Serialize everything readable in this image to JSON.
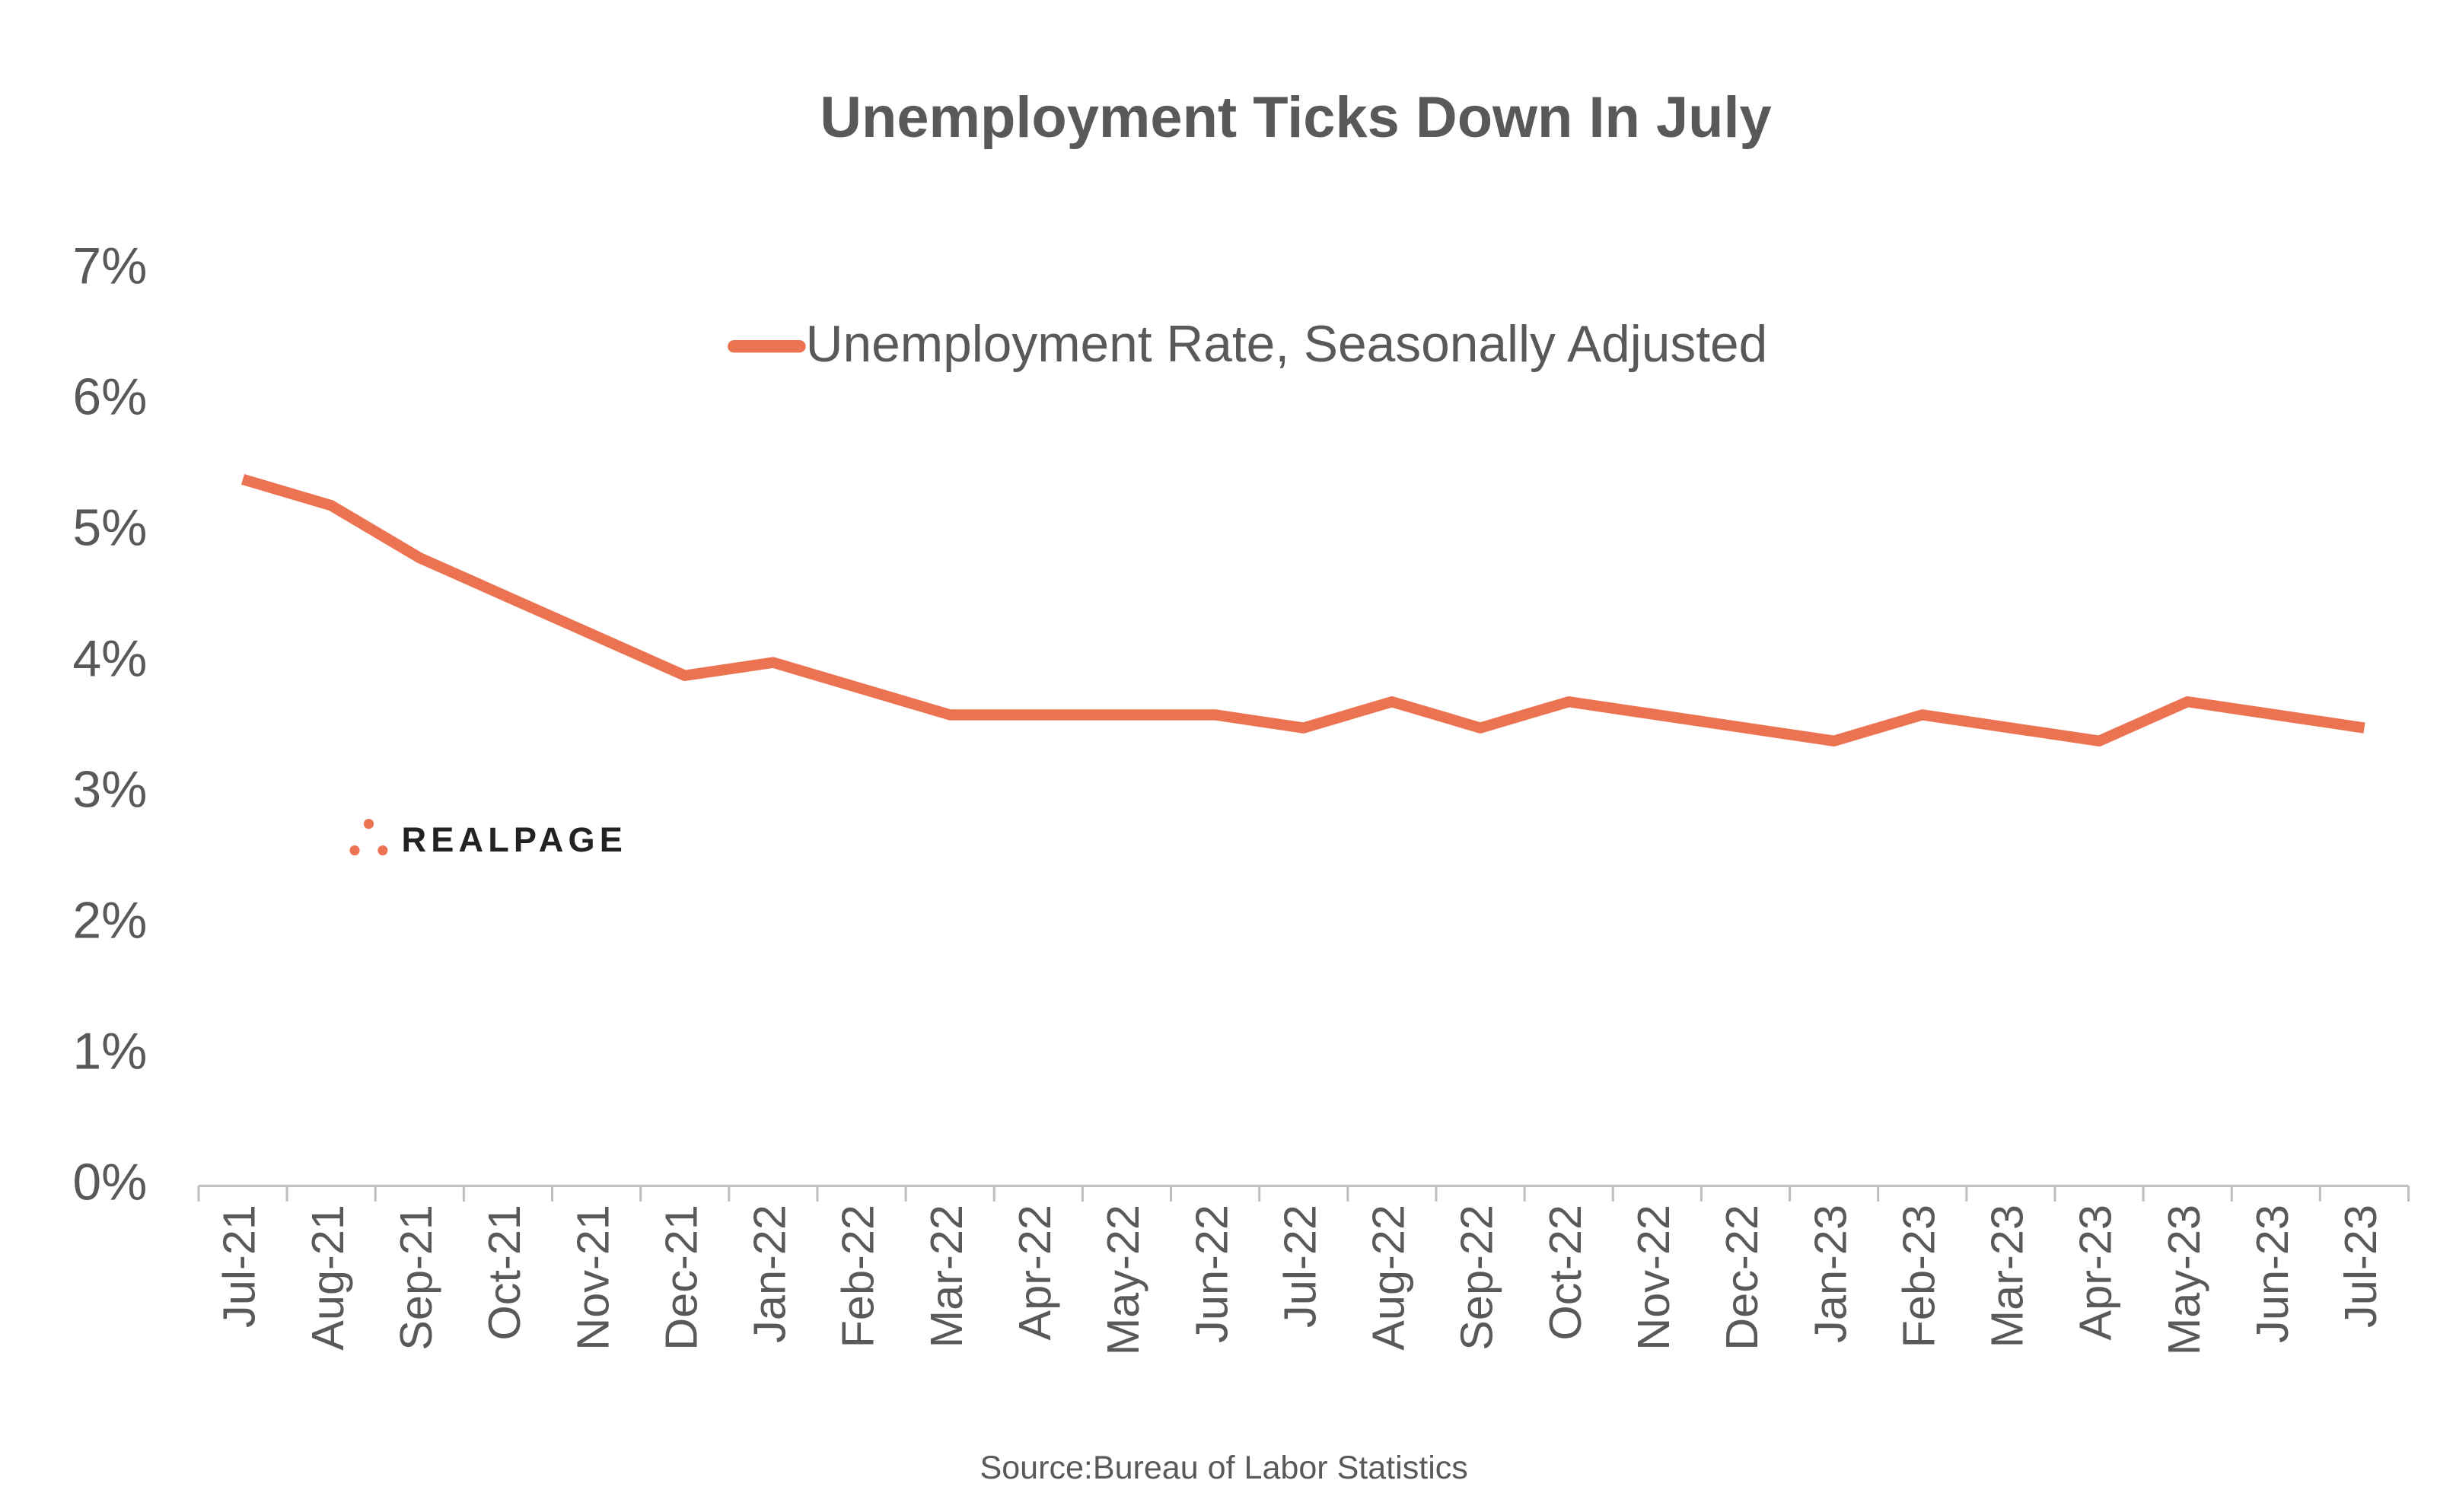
{
  "chart_data": {
    "type": "line",
    "title": "Unemployment Ticks Down In July",
    "source": "Source:Bureau of Labor Statistics",
    "logo": "REALPAGE",
    "categories": [
      "Jul-21",
      "Aug-21",
      "Sep-21",
      "Oct-21",
      "Nov-21",
      "Dec-21",
      "Jan-22",
      "Feb-22",
      "Mar-22",
      "Apr-22",
      "May-22",
      "Jun-22",
      "Jul-22",
      "Aug-22",
      "Sep-22",
      "Oct-22",
      "Nov-22",
      "Dec-22",
      "Jan-23",
      "Feb-23",
      "Mar-23",
      "Apr-23",
      "May-23",
      "Jun-23",
      "Jul-23"
    ],
    "series": [
      {
        "name": "Unemployment Rate, Seasonally Adjusted",
        "color": "#ec7352",
        "values": [
          5.4,
          5.2,
          4.8,
          4.5,
          4.2,
          3.9,
          4.0,
          3.8,
          3.6,
          3.6,
          3.6,
          3.6,
          3.5,
          3.7,
          3.5,
          3.7,
          3.6,
          3.5,
          3.4,
          3.6,
          3.5,
          3.4,
          3.7,
          3.6,
          3.5
        ]
      }
    ],
    "ylim": [
      0,
      7
    ],
    "yticks": [
      {
        "value": 0,
        "label": "0%"
      },
      {
        "value": 1,
        "label": "1%"
      },
      {
        "value": 2,
        "label": "2%"
      },
      {
        "value": 3,
        "label": "3%"
      },
      {
        "value": 4,
        "label": "4%"
      },
      {
        "value": 5,
        "label": "5%"
      },
      {
        "value": 6,
        "label": "6%"
      },
      {
        "value": 7,
        "label": "7%"
      }
    ],
    "grid": false,
    "legend": "top"
  }
}
